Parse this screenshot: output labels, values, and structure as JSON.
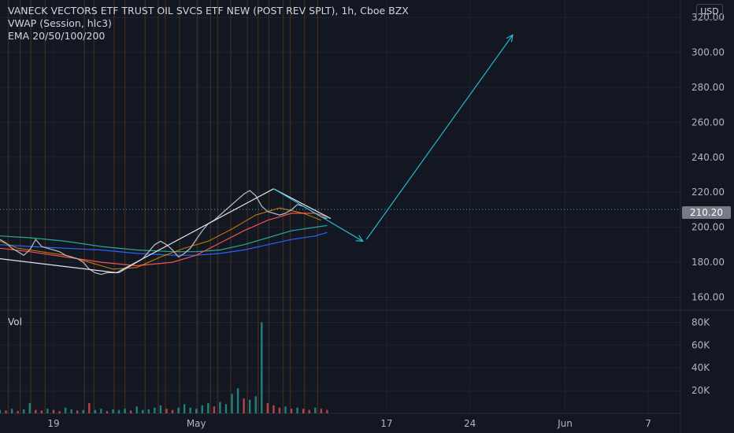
{
  "legend": {
    "title": "VANECK VECTORS ETF TRUST OIL SVCS ETF NEW (POST REV SPLT), 1h, Cboe BZX",
    "indicator1": "VWAP (Session, hlc3)",
    "indicator2": "EMA 20/50/100/200"
  },
  "currency": "USD",
  "volume_label": "Vol",
  "last_price": "210.20",
  "chart_data": {
    "type": "line",
    "price_axis": {
      "ticks": [
        {
          "value": 320,
          "label": "320.00"
        },
        {
          "value": 300,
          "label": "300.00"
        },
        {
          "value": 280,
          "label": "280.00"
        },
        {
          "value": 260,
          "label": "260.00"
        },
        {
          "value": 240,
          "label": "240.00"
        },
        {
          "value": 220,
          "label": "220.00"
        },
        {
          "value": 200,
          "label": "200.00"
        },
        {
          "value": 180,
          "label": "180.00"
        },
        {
          "value": 160,
          "label": "160.00"
        }
      ],
      "range": [
        153,
        330
      ]
    },
    "volume_axis": {
      "ticks": [
        {
          "value": 80000,
          "label": "80K"
        },
        {
          "value": 60000,
          "label": "60K"
        },
        {
          "value": 40000,
          "label": "40K"
        },
        {
          "value": 20000,
          "label": "20K"
        }
      ],
      "range": [
        0,
        90000
      ]
    },
    "time_axis": {
      "ticks": [
        {
          "day": 19,
          "label": "19"
        },
        {
          "day": 31,
          "label": "May"
        },
        {
          "day": 47,
          "label": "17"
        },
        {
          "day": 54,
          "label": "24"
        },
        {
          "day": 62,
          "label": "Jun"
        },
        {
          "day": 69,
          "label": "7"
        }
      ],
      "range": [
        14.5,
        71.7
      ]
    },
    "price": {
      "x": [
        14.5,
        15,
        15.5,
        16,
        16.5,
        17,
        17.5,
        18,
        18.5,
        19,
        19.5,
        20,
        20.5,
        21,
        21.5,
        22,
        22.5,
        23,
        23.5,
        24,
        24.5,
        25,
        25.5,
        26,
        26.5,
        27,
        27.5,
        28,
        28.5,
        29,
        29.5,
        30,
        30.5,
        31,
        31.5,
        32,
        32.5,
        33,
        33.5,
        34,
        34.5,
        35,
        35.5,
        36,
        36.5,
        37,
        37.5,
        38,
        38.5,
        39,
        39.5,
        40,
        40.5,
        41,
        41.5,
        42
      ],
      "y": [
        193,
        191,
        188,
        186,
        184,
        187,
        193,
        189,
        188,
        187,
        186,
        184,
        183,
        182,
        180,
        176,
        174,
        173,
        174,
        174,
        174,
        176,
        178,
        180,
        182,
        186,
        190,
        192,
        190,
        187,
        183,
        185,
        188,
        193,
        198,
        202,
        204,
        207,
        210,
        213,
        216,
        219,
        221,
        218,
        212,
        209,
        208,
        207,
        208,
        210,
        213,
        212,
        210,
        208,
        206,
        205
      ]
    },
    "vwap": {
      "x": [
        14.5,
        16,
        18,
        20,
        22,
        24,
        26,
        28,
        30,
        32,
        34,
        36,
        38,
        40,
        41.5
      ],
      "y": [
        192,
        188,
        186,
        184,
        180,
        176,
        177,
        183,
        188,
        192,
        199,
        207,
        211,
        208,
        204
      ]
    },
    "ema": [
      {
        "color": "#26a69a",
        "x": [
          14.5,
          17,
          20,
          23,
          26,
          29,
          31,
          33,
          35,
          37,
          39,
          41,
          42
        ],
        "y": [
          195,
          194,
          192,
          189,
          187,
          186,
          186,
          187,
          190,
          194,
          198,
          200,
          201
        ]
      },
      {
        "color": "#2962ff",
        "x": [
          14.5,
          17,
          20,
          23,
          26,
          29,
          31,
          33,
          35,
          37,
          39,
          41,
          42
        ],
        "y": [
          190,
          189,
          188,
          187,
          185,
          184,
          184,
          185,
          187,
          190,
          193,
          195,
          197
        ]
      },
      {
        "color": "#ef5350",
        "x": [
          14.5,
          17,
          20,
          23,
          26,
          29,
          31,
          33,
          35,
          37,
          39,
          41,
          42
        ],
        "y": [
          188,
          186,
          183,
          180,
          178,
          180,
          184,
          191,
          198,
          204,
          208,
          208,
          206
        ]
      }
    ],
    "volume": {
      "x": [
        14.5,
        15,
        15.5,
        16,
        16.5,
        17,
        17.5,
        18,
        18.5,
        19,
        19.5,
        20,
        20.5,
        21,
        21.5,
        22,
        22.5,
        23,
        23.5,
        24,
        24.5,
        25,
        25.5,
        26,
        26.5,
        27,
        27.5,
        28,
        28.5,
        29,
        29.5,
        30,
        30.5,
        31,
        31.5,
        32,
        32.5,
        33,
        33.5,
        34,
        34.5,
        35,
        35.5,
        36,
        36.5,
        37,
        37.5,
        38,
        38.5,
        39,
        39.5,
        40,
        40.5,
        41,
        41.5,
        42
      ],
      "values": [
        3000,
        2500,
        4000,
        2000,
        3500,
        9000,
        3000,
        2500,
        4000,
        3000,
        2000,
        5000,
        3500,
        2500,
        3000,
        9000,
        3000,
        4000,
        2000,
        3500,
        3000,
        4000,
        2500,
        6000,
        3000,
        3500,
        5000,
        7000,
        4000,
        3000,
        5000,
        8000,
        5000,
        4000,
        7000,
        9000,
        6000,
        10000,
        8000,
        17000,
        22000,
        13000,
        12000,
        15000,
        80000,
        9000,
        7000,
        5000,
        6000,
        4000,
        5000,
        4000,
        3000,
        5000,
        4000,
        3000
      ],
      "up": [
        true,
        false,
        true,
        false,
        true,
        true,
        false,
        false,
        true,
        false,
        false,
        true,
        true,
        false,
        true,
        false,
        true,
        true,
        false,
        true,
        true,
        true,
        false,
        true,
        true,
        true,
        true,
        true,
        false,
        false,
        true,
        true,
        true,
        true,
        true,
        true,
        false,
        true,
        true,
        true,
        true,
        false,
        true,
        true,
        true,
        false,
        false,
        false,
        true,
        false,
        true,
        false,
        false,
        true,
        false,
        false
      ]
    },
    "highlight_days": [
      15.2,
      16.2,
      17.1,
      18.3,
      21.6,
      22.4,
      24.1,
      25.0,
      26.7,
      27.8,
      28.4,
      29.6,
      31.1,
      32.2,
      32.8,
      33.9,
      35.3,
      36.2,
      37.1,
      38.3,
      38.9,
      40.1,
      41.2
    ],
    "drawings": {
      "channel": [
        {
          "x1": 14.5,
          "y1": 182,
          "x2": 24.3,
          "y2": 174
        },
        {
          "x1": 24.3,
          "y1": 174,
          "x2": 37.5,
          "y2": 222
        },
        {
          "x1": 37.5,
          "y1": 222,
          "x2": 42.3,
          "y2": 205
        }
      ],
      "arrows": [
        {
          "x1": 37.5,
          "y1": 222,
          "x2": 45.0,
          "y2": 192
        },
        {
          "x1": 45.3,
          "y1": 193,
          "x2": 57.6,
          "y2": 310
        }
      ]
    },
    "grid": true
  }
}
